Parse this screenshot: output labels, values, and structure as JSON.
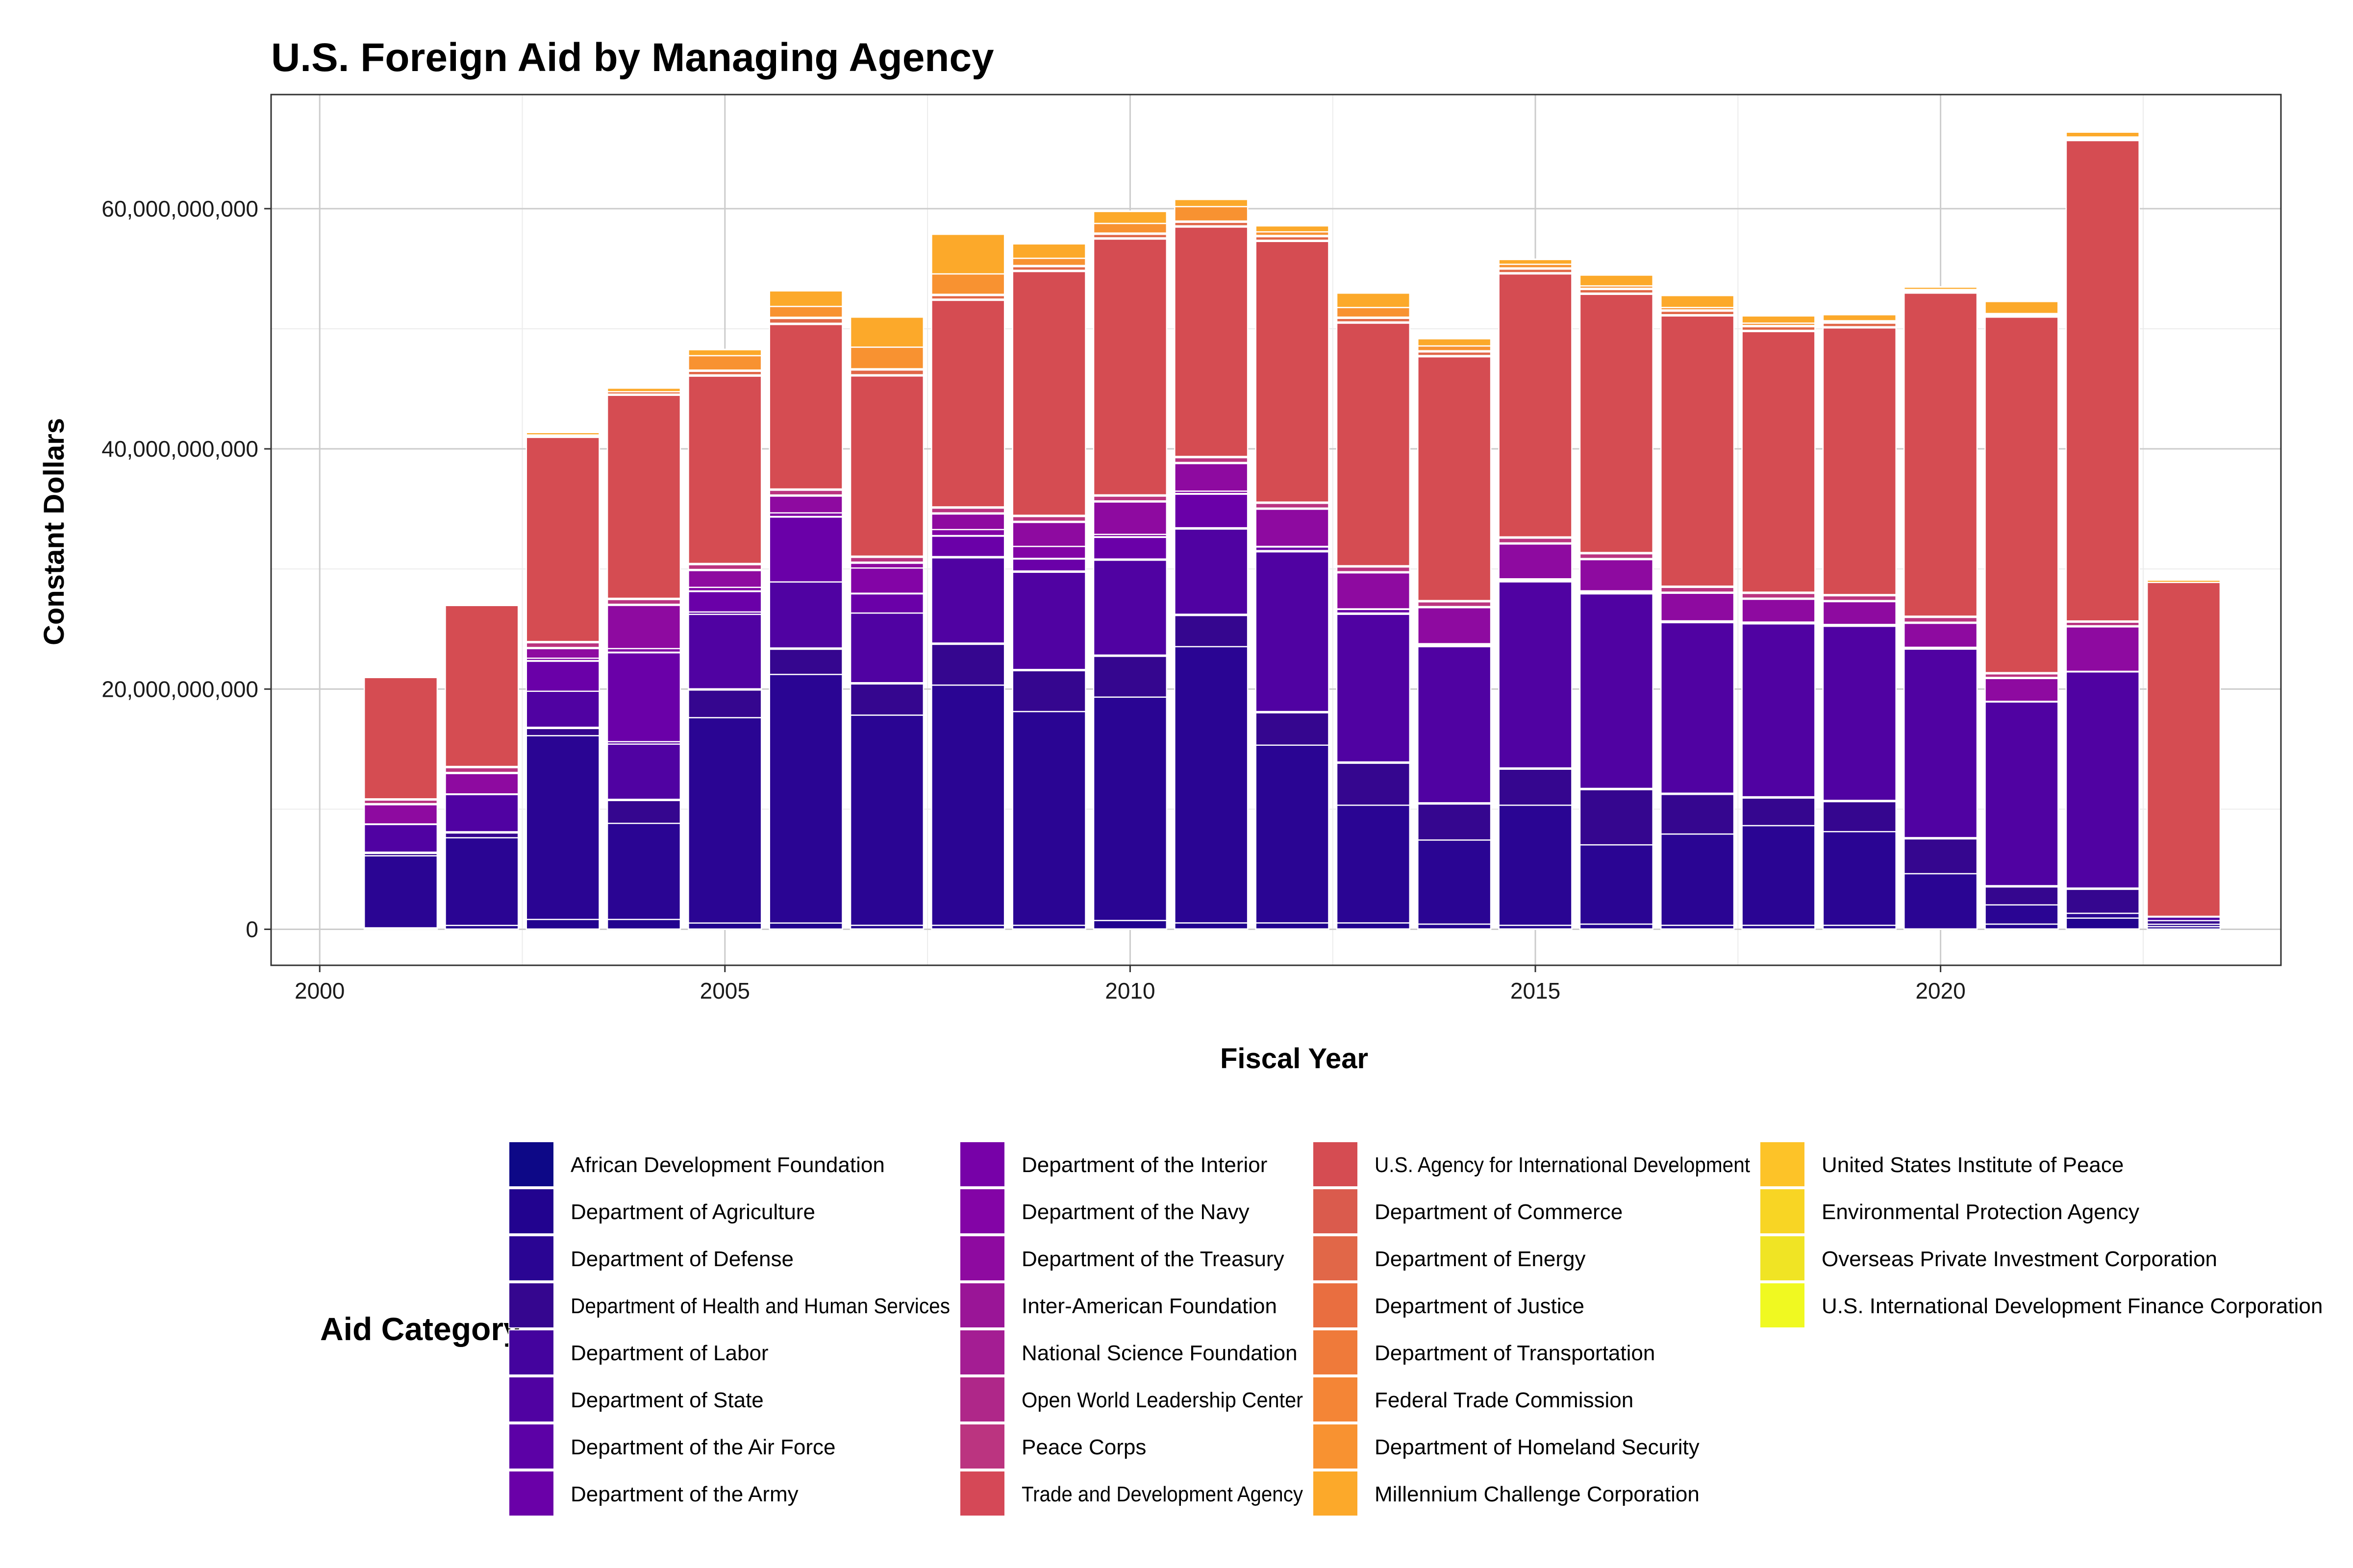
{
  "chart_data": {
    "type": "bar",
    "stacked": true,
    "title": "U.S. Foreign Aid by Managing Agency",
    "xlabel": "Fiscal Year",
    "ylabel": "Constant Dollars",
    "xlim": [
      1999.4,
      2024.2
    ],
    "ylim": [
      -3000000000,
      69500000000
    ],
    "x_ticks": [
      2000,
      2005,
      2010,
      2015,
      2020
    ],
    "y_ticks": [
      0,
      20000000000,
      40000000000,
      60000000000
    ],
    "y_tick_labels": [
      "0",
      "20,000,000,000",
      "40,000,000,000",
      "60,000,000,000"
    ],
    "grid": true,
    "legend_title": "Aid Category",
    "legend_position": "bottom",
    "categories": [
      2001,
      2002,
      2003,
      2004,
      2005,
      2006,
      2007,
      2008,
      2009,
      2010,
      2011,
      2012,
      2013,
      2014,
      2015,
      2016,
      2017,
      2018,
      2019,
      2020,
      2021,
      2022,
      2023
    ],
    "series": [
      {
        "name": "African Development Foundation",
        "color": "#0d0887",
        "values": [
          0.02,
          0.02,
          0.02,
          0.02,
          0.02,
          0.02,
          0.03,
          0.03,
          0.03,
          0.03,
          0.03,
          0.03,
          0.03,
          0.03,
          0.03,
          0.03,
          0.03,
          0.03,
          0.03,
          0.03,
          0.03,
          0.03,
          0.02
        ]
      },
      {
        "name": "Department of Agriculture",
        "color": "#22038f",
        "values": [
          0.1,
          0.3,
          0.8,
          0.8,
          0.5,
          0.5,
          0.3,
          0.3,
          0.3,
          0.7,
          0.5,
          0.5,
          0.5,
          0.4,
          0.3,
          0.4,
          0.3,
          0.3,
          0.3,
          0.0,
          0.4,
          0.9,
          0.2
        ]
      },
      {
        "name": "Department of Defense",
        "color": "#2a0593",
        "values": [
          6.0,
          7.3,
          15.3,
          8.0,
          17.1,
          20.7,
          17.5,
          20.0,
          17.8,
          18.6,
          23.0,
          14.8,
          9.8,
          7.0,
          10.0,
          6.6,
          7.6,
          8.3,
          7.8,
          4.6,
          1.6,
          0.4,
          0.2
        ]
      },
      {
        "name": "Department of Health and Human Services",
        "color": "#35068f",
        "values": [
          0.2,
          0.4,
          0.6,
          1.9,
          2.3,
          2.1,
          2.6,
          3.4,
          3.4,
          3.4,
          2.6,
          2.7,
          3.5,
          3.0,
          3.0,
          4.6,
          3.3,
          2.3,
          2.5,
          2.9,
          1.5,
          2.0,
          0.3
        ]
      },
      {
        "name": "Department of Labor",
        "color": "#44039e",
        "values": [
          0.1,
          0.1,
          0.1,
          0.1,
          0.1,
          0.1,
          0.1,
          0.1,
          0.1,
          0.1,
          0.1,
          0.1,
          0.1,
          0.1,
          0.1,
          0.1,
          0.1,
          0.1,
          0.1,
          0.1,
          0.1,
          0.1,
          0.0
        ]
      },
      {
        "name": "Department of State",
        "color": "#5002a2",
        "values": [
          2.3,
          3.1,
          3.0,
          4.6,
          6.2,
          5.5,
          5.8,
          7.1,
          8.1,
          7.9,
          7.1,
          13.3,
          12.3,
          13.0,
          15.5,
          16.2,
          14.2,
          14.4,
          14.5,
          15.7,
          15.3,
          18.0,
          0.3
        ]
      },
      {
        "name": "Department of the Air Force",
        "color": "#5c01a6",
        "values": [
          0.0,
          0.0,
          0.0,
          0.2,
          0.2,
          0.0,
          0.0,
          0.1,
          0.1,
          0.1,
          0.1,
          0.1,
          0.1,
          0.1,
          0.1,
          0.1,
          0.1,
          0.1,
          0.1,
          0.1,
          0.0,
          0.0,
          0.0
        ]
      },
      {
        "name": "Department of the Army",
        "color": "#6a00a8",
        "values": [
          0.0,
          0.0,
          2.5,
          7.4,
          1.7,
          5.4,
          1.6,
          1.7,
          1.0,
          1.8,
          2.8,
          0.3,
          0.3,
          0.1,
          0.1,
          0.1,
          0.0,
          0.0,
          0.0,
          0.0,
          0.0,
          0.0,
          0.0
        ]
      },
      {
        "name": "Department of the Interior",
        "color": "#7701a8",
        "values": [
          0.05,
          0.05,
          0.05,
          0.05,
          0.05,
          0.05,
          0.05,
          0.05,
          0.05,
          0.05,
          0.05,
          0.05,
          0.05,
          0.05,
          0.05,
          0.05,
          0.05,
          0.05,
          0.05,
          0.05,
          0.05,
          0.05,
          0.02
        ]
      },
      {
        "name": "Department of the Navy",
        "color": "#8304a6",
        "values": [
          0.0,
          0.0,
          0.2,
          0.3,
          0.3,
          0.3,
          2.1,
          0.5,
          1.0,
          0.2,
          0.2,
          0.0,
          0.0,
          0.0,
          0.0,
          0.0,
          0.0,
          0.0,
          0.0,
          0.0,
          0.0,
          0.0,
          0.0
        ]
      },
      {
        "name": "Department of the Treasury",
        "color": "#8e0aa0",
        "values": [
          1.6,
          1.7,
          0.8,
          3.6,
          1.4,
          1.4,
          0.4,
          1.3,
          2.0,
          2.7,
          2.3,
          3.1,
          3.0,
          3.0,
          2.9,
          2.6,
          2.3,
          1.9,
          1.9,
          2.0,
          1.9,
          3.7,
          0.0
        ]
      },
      {
        "name": "Inter-American Foundation",
        "color": "#9a1597",
        "values": [
          0.03,
          0.03,
          0.03,
          0.03,
          0.03,
          0.03,
          0.03,
          0.03,
          0.03,
          0.03,
          0.03,
          0.03,
          0.03,
          0.03,
          0.03,
          0.03,
          0.03,
          0.03,
          0.03,
          0.03,
          0.03,
          0.03,
          0.02
        ]
      },
      {
        "name": "National Science Foundation",
        "color": "#a41d93",
        "values": [
          0.05,
          0.05,
          0.05,
          0.05,
          0.05,
          0.05,
          0.05,
          0.05,
          0.05,
          0.05,
          0.05,
          0.05,
          0.05,
          0.05,
          0.05,
          0.05,
          0.05,
          0.05,
          0.05,
          0.05,
          0.05,
          0.05,
          0.02
        ]
      },
      {
        "name": "Open World Leadership Center",
        "color": "#af2789",
        "values": [
          0.01,
          0.01,
          0.01,
          0.01,
          0.01,
          0.01,
          0.01,
          0.01,
          0.01,
          0.01,
          0.01,
          0.01,
          0.01,
          0.01,
          0.01,
          0.01,
          0.01,
          0.01,
          0.01,
          0.01,
          0.01,
          0.01,
          0.0
        ]
      },
      {
        "name": "Peace Corps",
        "color": "#bb3480",
        "values": [
          0.3,
          0.4,
          0.4,
          0.4,
          0.4,
          0.4,
          0.4,
          0.4,
          0.4,
          0.4,
          0.4,
          0.4,
          0.4,
          0.4,
          0.4,
          0.4,
          0.4,
          0.4,
          0.4,
          0.4,
          0.3,
          0.3,
          0.0
        ]
      },
      {
        "name": "Trade and Development Agency",
        "color": "#d54857",
        "values": [
          0.1,
          0.1,
          0.1,
          0.1,
          0.1,
          0.1,
          0.1,
          0.1,
          0.1,
          0.1,
          0.1,
          0.1,
          0.1,
          0.1,
          0.1,
          0.1,
          0.1,
          0.1,
          0.1,
          0.1,
          0.1,
          0.1,
          0.0
        ]
      },
      {
        "name": "U.S. Agency for International Development",
        "color": "#d54c52",
        "values": [
          10.1,
          13.4,
          17.0,
          16.9,
          15.6,
          13.7,
          15.0,
          17.2,
          20.3,
          21.3,
          19.1,
          21.7,
          20.2,
          20.3,
          21.9,
          21.5,
          22.5,
          21.7,
          22.2,
          26.9,
          29.6,
          40.0,
          27.8
        ]
      },
      {
        "name": "Department of Commerce",
        "color": "#da5b4d",
        "values": [
          0.0,
          0.0,
          0.1,
          0.1,
          0.1,
          0.1,
          0.1,
          0.1,
          0.1,
          0.1,
          0.1,
          0.1,
          0.1,
          0.1,
          0.1,
          0.1,
          0.1,
          0.1,
          0.1,
          0.1,
          0.1,
          0.1,
          0.0
        ]
      },
      {
        "name": "Department of Energy",
        "color": "#e16748",
        "values": [
          0.0,
          0.0,
          0.0,
          0.0,
          0.3,
          0.4,
          0.4,
          0.3,
          0.3,
          0.3,
          0.3,
          0.3,
          0.3,
          0.3,
          0.3,
          0.3,
          0.3,
          0.3,
          0.3,
          0.1,
          0.1,
          0.1,
          0.0
        ]
      },
      {
        "name": "Department of Justice",
        "color": "#e96e40",
        "values": [
          0.0,
          0.0,
          0.1,
          0.2,
          0.1,
          0.1,
          0.1,
          0.1,
          0.1,
          0.1,
          0.1,
          0.1,
          0.1,
          0.1,
          0.1,
          0.1,
          0.1,
          0.1,
          0.1,
          0.1,
          0.1,
          0.1,
          0.0
        ]
      },
      {
        "name": "Department of Transportation",
        "color": "#ef7a3a",
        "values": [
          0.0,
          0.0,
          0.0,
          0.0,
          0.0,
          0.0,
          0.0,
          0.0,
          0.0,
          0.0,
          0.0,
          0.0,
          0.0,
          0.0,
          0.0,
          0.0,
          0.0,
          0.0,
          0.0,
          0.0,
          0.0,
          0.0,
          0.0
        ]
      },
      {
        "name": "Federal Trade Commission",
        "color": "#f48536",
        "values": [
          0.0,
          0.0,
          0.0,
          0.0,
          0.0,
          0.0,
          0.0,
          0.0,
          0.0,
          0.0,
          0.0,
          0.0,
          0.0,
          0.0,
          0.0,
          0.0,
          0.0,
          0.0,
          0.0,
          0.0,
          0.0,
          0.0,
          0.0
        ]
      },
      {
        "name": "Department of Homeland Security",
        "color": "#f89231",
        "values": [
          0.0,
          0.0,
          0.0,
          0.0,
          1.2,
          0.9,
          1.8,
          1.7,
          0.6,
          0.8,
          1.2,
          0.3,
          0.8,
          0.4,
          0.3,
          0.2,
          0.2,
          0.2,
          0.1,
          0.0,
          0.0,
          0.0,
          0.0
        ]
      },
      {
        "name": "Millennium Challenge Corporation",
        "color": "#fca92a",
        "values": [
          0.0,
          0.0,
          0.2,
          0.3,
          0.5,
          1.3,
          2.5,
          3.3,
          1.2,
          1.0,
          0.6,
          0.5,
          1.2,
          0.6,
          0.4,
          0.9,
          1.0,
          0.6,
          0.5,
          0.2,
          1.0,
          0.4,
          0.2
        ]
      },
      {
        "name": "United States Institute of Peace",
        "color": "#fdc328",
        "values": [
          0.02,
          0.02,
          0.02,
          0.02,
          0.02,
          0.02,
          0.02,
          0.02,
          0.02,
          0.02,
          0.02,
          0.02,
          0.02,
          0.02,
          0.02,
          0.02,
          0.02,
          0.02,
          0.02,
          0.02,
          0.02,
          0.02,
          0.01
        ]
      },
      {
        "name": "Environmental Protection Agency",
        "color": "#f8d524",
        "values": [
          0.01,
          0.01,
          0.01,
          0.01,
          0.01,
          0.01,
          0.01,
          0.01,
          0.01,
          0.01,
          0.01,
          0.01,
          0.01,
          0.01,
          0.01,
          0.01,
          0.01,
          0.01,
          0.01,
          0.01,
          0.01,
          0.01,
          0.0
        ]
      },
      {
        "name": "Overseas Private Investment Corporation",
        "color": "#f0e424",
        "values": [
          0.0,
          0.0,
          0.0,
          0.0,
          0.0,
          0.0,
          0.0,
          0.0,
          0.0,
          0.0,
          0.0,
          0.0,
          0.0,
          0.0,
          0.0,
          0.0,
          0.0,
          0.0,
          0.0,
          0.0,
          0.0,
          0.0,
          0.0
        ]
      },
      {
        "name": "U.S. International Development Finance Corporation",
        "color": "#f0f921",
        "values": [
          0.0,
          0.0,
          0.0,
          0.0,
          0.0,
          0.0,
          0.0,
          0.0,
          0.0,
          0.0,
          0.0,
          0.0,
          0.0,
          0.0,
          0.0,
          0.0,
          0.0,
          0.0,
          0.0,
          0.0,
          0.05,
          0.05,
          0.02
        ]
      }
    ],
    "value_unit_multiplier": 1000000000
  }
}
